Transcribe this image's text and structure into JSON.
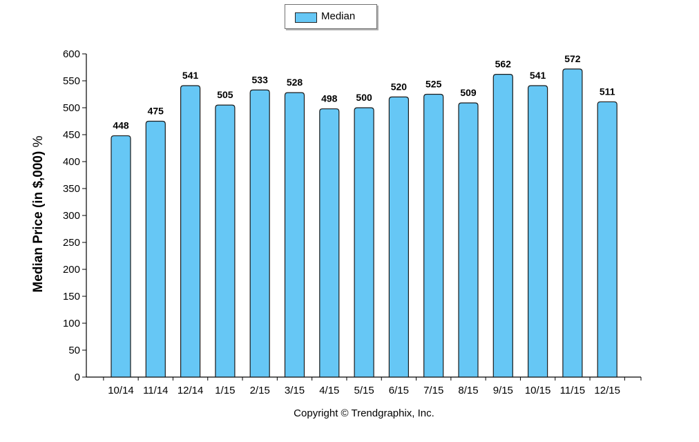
{
  "legend": {
    "label": "Median",
    "color": "#66c7f5"
  },
  "ylabel_main": "Median Price (in $,000)",
  "ylabel_unit": " %",
  "copyright": "Copyright © Trendgraphix, Inc.",
  "chart_data": {
    "type": "bar",
    "categories": [
      "10/14",
      "11/14",
      "12/14",
      "1/15",
      "2/15",
      "3/15",
      "4/15",
      "5/15",
      "6/15",
      "7/15",
      "8/15",
      "9/15",
      "10/15",
      "11/15",
      "12/15"
    ],
    "series": [
      {
        "name": "Median",
        "values": [
          448,
          475,
          541,
          505,
          533,
          528,
          498,
          500,
          520,
          525,
          509,
          562,
          541,
          572,
          511
        ]
      }
    ],
    "ylabel": "Median Price (in $,000) %",
    "ylim": [
      0,
      600
    ],
    "yticks": [
      0,
      50,
      100,
      150,
      200,
      250,
      300,
      350,
      400,
      450,
      500,
      550,
      600
    ],
    "legend_position": "top-center",
    "grid": false,
    "bar_color": "#66c7f5"
  }
}
